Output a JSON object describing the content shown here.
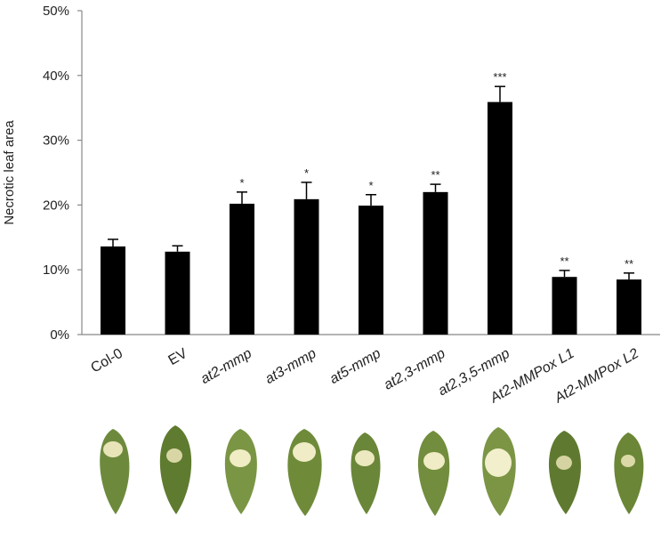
{
  "chart_data": {
    "type": "bar",
    "y_label": "Necrotic leaf area",
    "categories": [
      "Col-0",
      "EV",
      "at2-mmp",
      "at3-mmp",
      "at5-mmp",
      "at2,3-mmp",
      "at2,3,5-mmp",
      "At2-MMPox L1",
      "At2-MMPox L2"
    ],
    "category_italic": [
      false,
      false,
      true,
      true,
      true,
      true,
      true,
      true,
      true
    ],
    "values": [
      13.6,
      12.8,
      20.2,
      20.9,
      19.9,
      22.0,
      35.9,
      8.9,
      8.5
    ],
    "errors": [
      1.1,
      0.9,
      1.8,
      2.6,
      1.7,
      1.2,
      2.4,
      1.0,
      1.0
    ],
    "annotations": [
      null,
      null,
      "*",
      "*",
      "*",
      "**",
      "***",
      "**",
      "**"
    ],
    "color": "#000000",
    "ylim": [
      0,
      50
    ],
    "yticks": [
      {
        "value": 0,
        "label": "0%"
      },
      {
        "value": 10,
        "label": "10%"
      },
      {
        "value": 20,
        "label": "20%"
      },
      {
        "value": 30,
        "label": "30%"
      },
      {
        "value": 40,
        "label": "40%"
      },
      {
        "value": 50,
        "label": "50%"
      }
    ]
  }
}
